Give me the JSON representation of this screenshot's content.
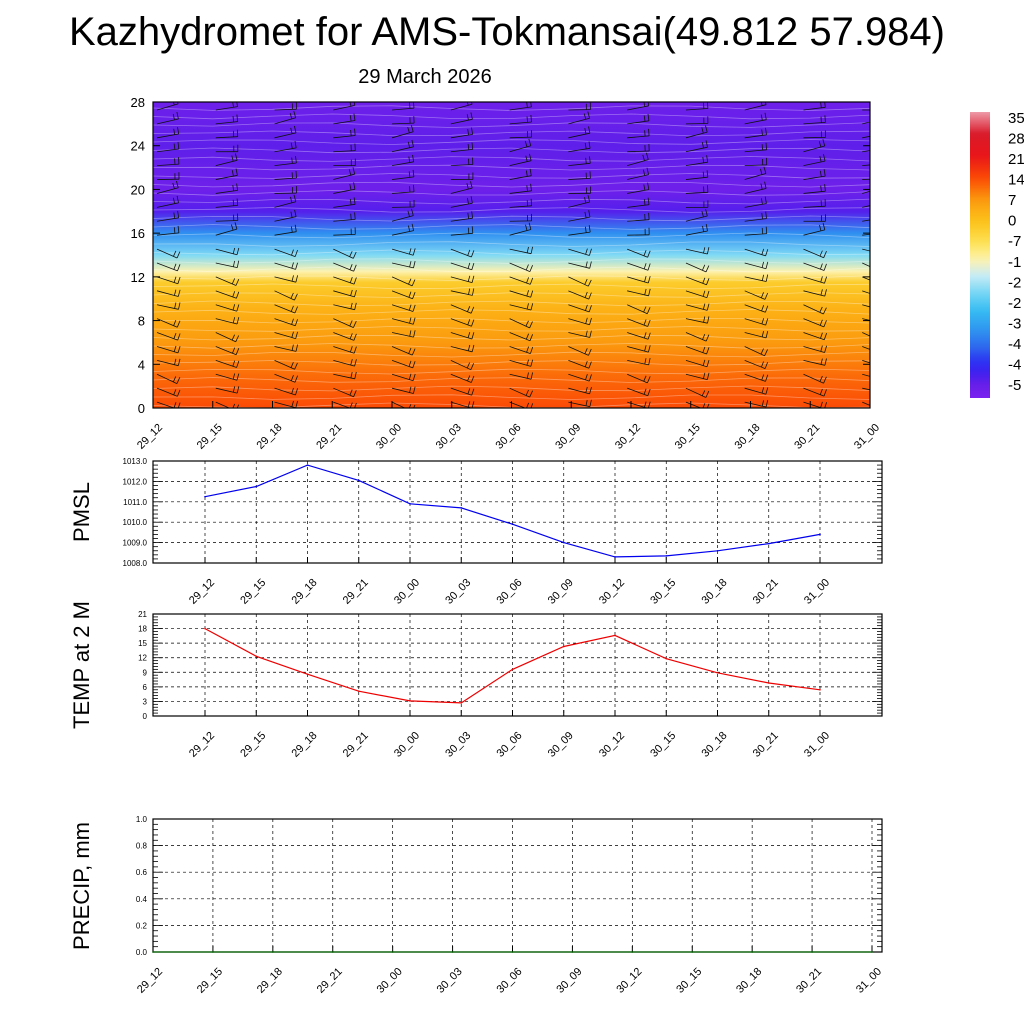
{
  "header": {
    "title": "Kazhydromet for AMS-Tokmansai(49.812 57.984)",
    "date": "29 March 2026"
  },
  "colors": {
    "pmsl_line": "#0000ee",
    "temp_line": "#ee0000",
    "precip_line": "#006400",
    "grid": "#000000",
    "barb": "#111111",
    "contour_line": "#ffffff"
  },
  "chart_data": [
    {
      "type": "heatmap",
      "name": "profile",
      "x_ticks": [
        "29_12",
        "29_15",
        "29_18",
        "29_21",
        "30_00",
        "30_03",
        "30_06",
        "30_09",
        "30_12",
        "30_15",
        "30_18",
        "30_21",
        "31_00"
      ],
      "y_ticks": [
        "0",
        "4",
        "8",
        "12",
        "16",
        "20",
        "24",
        "28"
      ],
      "ylim": [
        0,
        28
      ],
      "colorbar_labels": [
        "35",
        "28",
        "21",
        "14",
        "7",
        "0",
        "-7",
        "-1",
        "-2",
        "-2",
        "-3",
        "-4",
        "-4",
        "-5"
      ],
      "layers": [
        {
          "y": 0,
          "value": 14
        },
        {
          "y": 3,
          "value": 11
        },
        {
          "y": 6,
          "value": 7
        },
        {
          "y": 9,
          "value": 3
        },
        {
          "y": 11.5,
          "value": -2
        },
        {
          "y": 12.5,
          "value": -12
        },
        {
          "y": 14,
          "value": -22
        },
        {
          "y": 16,
          "value": -35
        },
        {
          "y": 18,
          "value": -50
        },
        {
          "y": 20,
          "value": -53
        },
        {
          "y": 24,
          "value": -51
        },
        {
          "y": 28,
          "value": -53
        }
      ],
      "wind_barbs": "present"
    },
    {
      "type": "line",
      "name": "pmsl",
      "ylabel": "PMSL",
      "ylim": [
        1008,
        1013
      ],
      "y_ticks": [
        "1008.0",
        "1009.0",
        "1010.0",
        "1011.0",
        "1012.0",
        "1013.0"
      ],
      "x_ticks": [
        "29_12",
        "29_15",
        "29_18",
        "29_21",
        "30_00",
        "30_03",
        "30_06",
        "30_09",
        "30_12",
        "30_15",
        "30_18",
        "30_21",
        "31_00"
      ],
      "values": [
        1011.25,
        1011.75,
        1012.8,
        1012.05,
        1010.9,
        1010.7,
        1009.9,
        1009.0,
        1008.3,
        1008.35,
        1008.6,
        1008.95,
        1009.4
      ]
    },
    {
      "type": "line",
      "name": "temp",
      "ylabel": "TEMP at 2 M",
      "ylim": [
        0,
        21
      ],
      "y_ticks": [
        "0",
        "3",
        "6",
        "9",
        "12",
        "15",
        "18",
        "21"
      ],
      "x_ticks": [
        "29_12",
        "29_15",
        "29_18",
        "29_21",
        "30_00",
        "30_03",
        "30_06",
        "30_09",
        "30_12",
        "30_15",
        "30_18",
        "30_21",
        "31_00"
      ],
      "values": [
        18.0,
        12.3,
        8.6,
        5.1,
        3.1,
        2.7,
        9.6,
        14.3,
        16.6,
        11.8,
        8.9,
        6.8,
        5.4
      ]
    },
    {
      "type": "line",
      "name": "precip",
      "ylabel": "PRECIP, mm",
      "ylim": [
        0,
        1
      ],
      "y_ticks": [
        "0.0",
        "0.2",
        "0.4",
        "0.6",
        "0.8",
        "1.0"
      ],
      "x_ticks": [
        "29_12",
        "29_15",
        "29_18",
        "29_21",
        "30_00",
        "30_03",
        "30_06",
        "30_09",
        "30_12",
        "30_15",
        "30_18",
        "30_21",
        "31_00"
      ],
      "values": [
        0,
        0,
        0,
        0,
        0,
        0,
        0,
        0,
        0,
        0,
        0,
        0,
        0
      ]
    }
  ]
}
